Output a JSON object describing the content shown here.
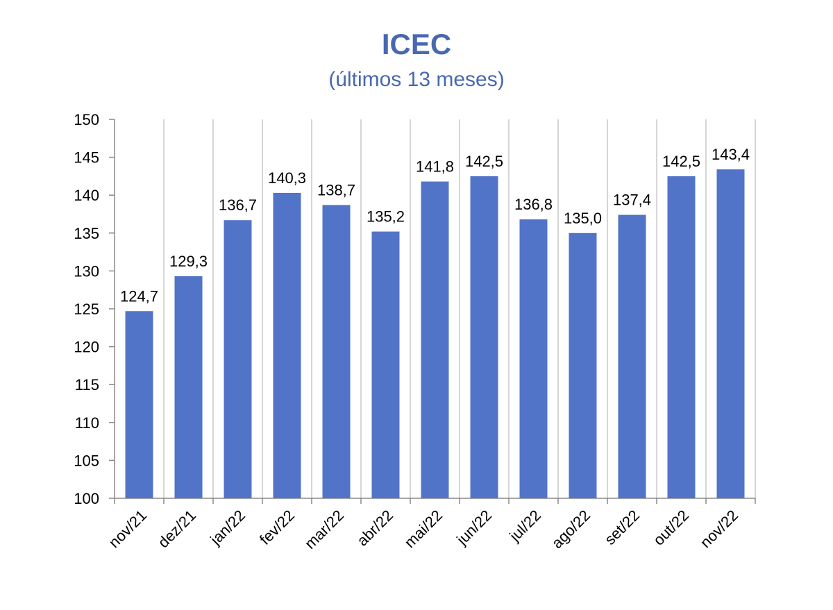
{
  "chart_data": {
    "type": "bar",
    "title": "ICEC",
    "subtitle": "(últimos 13 meses)",
    "categories": [
      "nov/21",
      "dez/21",
      "jan/22",
      "fev/22",
      "mar/22",
      "abr/22",
      "mai/22",
      "jun/22",
      "jul/22",
      "ago/22",
      "set/22",
      "out/22",
      "nov/22"
    ],
    "values": [
      124.7,
      129.3,
      136.7,
      140.3,
      138.7,
      135.2,
      141.8,
      142.5,
      136.8,
      135.0,
      137.4,
      142.5,
      143.4
    ],
    "value_labels": [
      "124,7",
      "129,3",
      "136,7",
      "140,3",
      "138,7",
      "135,2",
      "141,8",
      "142,5",
      "136,8",
      "135,0",
      "137,4",
      "142,5",
      "143,4"
    ],
    "ylim": [
      100,
      150
    ],
    "yticks": [
      100,
      105,
      110,
      115,
      120,
      125,
      130,
      135,
      140,
      145,
      150
    ],
    "xlabel": "",
    "ylabel": "",
    "grid": "vertical",
    "bar_color": "#5274c8",
    "title_color": "#4868b0"
  }
}
